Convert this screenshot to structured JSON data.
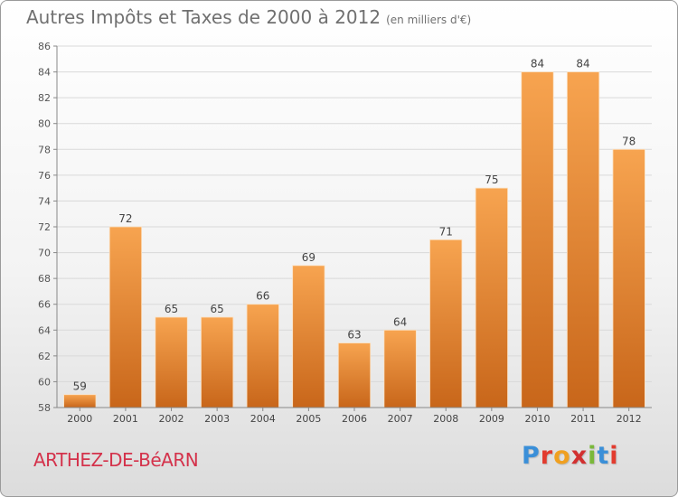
{
  "header": {
    "title": "Autres Impôts et Taxes de 2000 à 2012",
    "subtitle": "(en milliers d'€)"
  },
  "footer": {
    "city": "ARTHEZ-DE-BéARN",
    "brand": "Proxiti",
    "brand_colors": [
      "#3a8fd8",
      "#e23b2e",
      "#f0a020",
      "#d23030",
      "#7ab83a",
      "#3a8fd8",
      "#e23b2e"
    ]
  },
  "chart_data": {
    "type": "bar",
    "title": "Autres Impôts et Taxes de 2000 à 2012",
    "subtitle": "(en milliers d'€)",
    "categories": [
      "2000",
      "2001",
      "2002",
      "2003",
      "2004",
      "2005",
      "2006",
      "2007",
      "2008",
      "2009",
      "2010",
      "2011",
      "2012"
    ],
    "values": [
      59,
      72,
      65,
      65,
      66,
      69,
      63,
      64,
      71,
      75,
      84,
      84,
      78
    ],
    "ylim": [
      58,
      86
    ],
    "yticks": [
      58,
      60,
      62,
      64,
      66,
      68,
      70,
      72,
      74,
      76,
      78,
      80,
      82,
      84,
      86
    ],
    "grid": true,
    "bar_color_light": "#f7a450",
    "bar_color_dark": "#c8661a"
  }
}
